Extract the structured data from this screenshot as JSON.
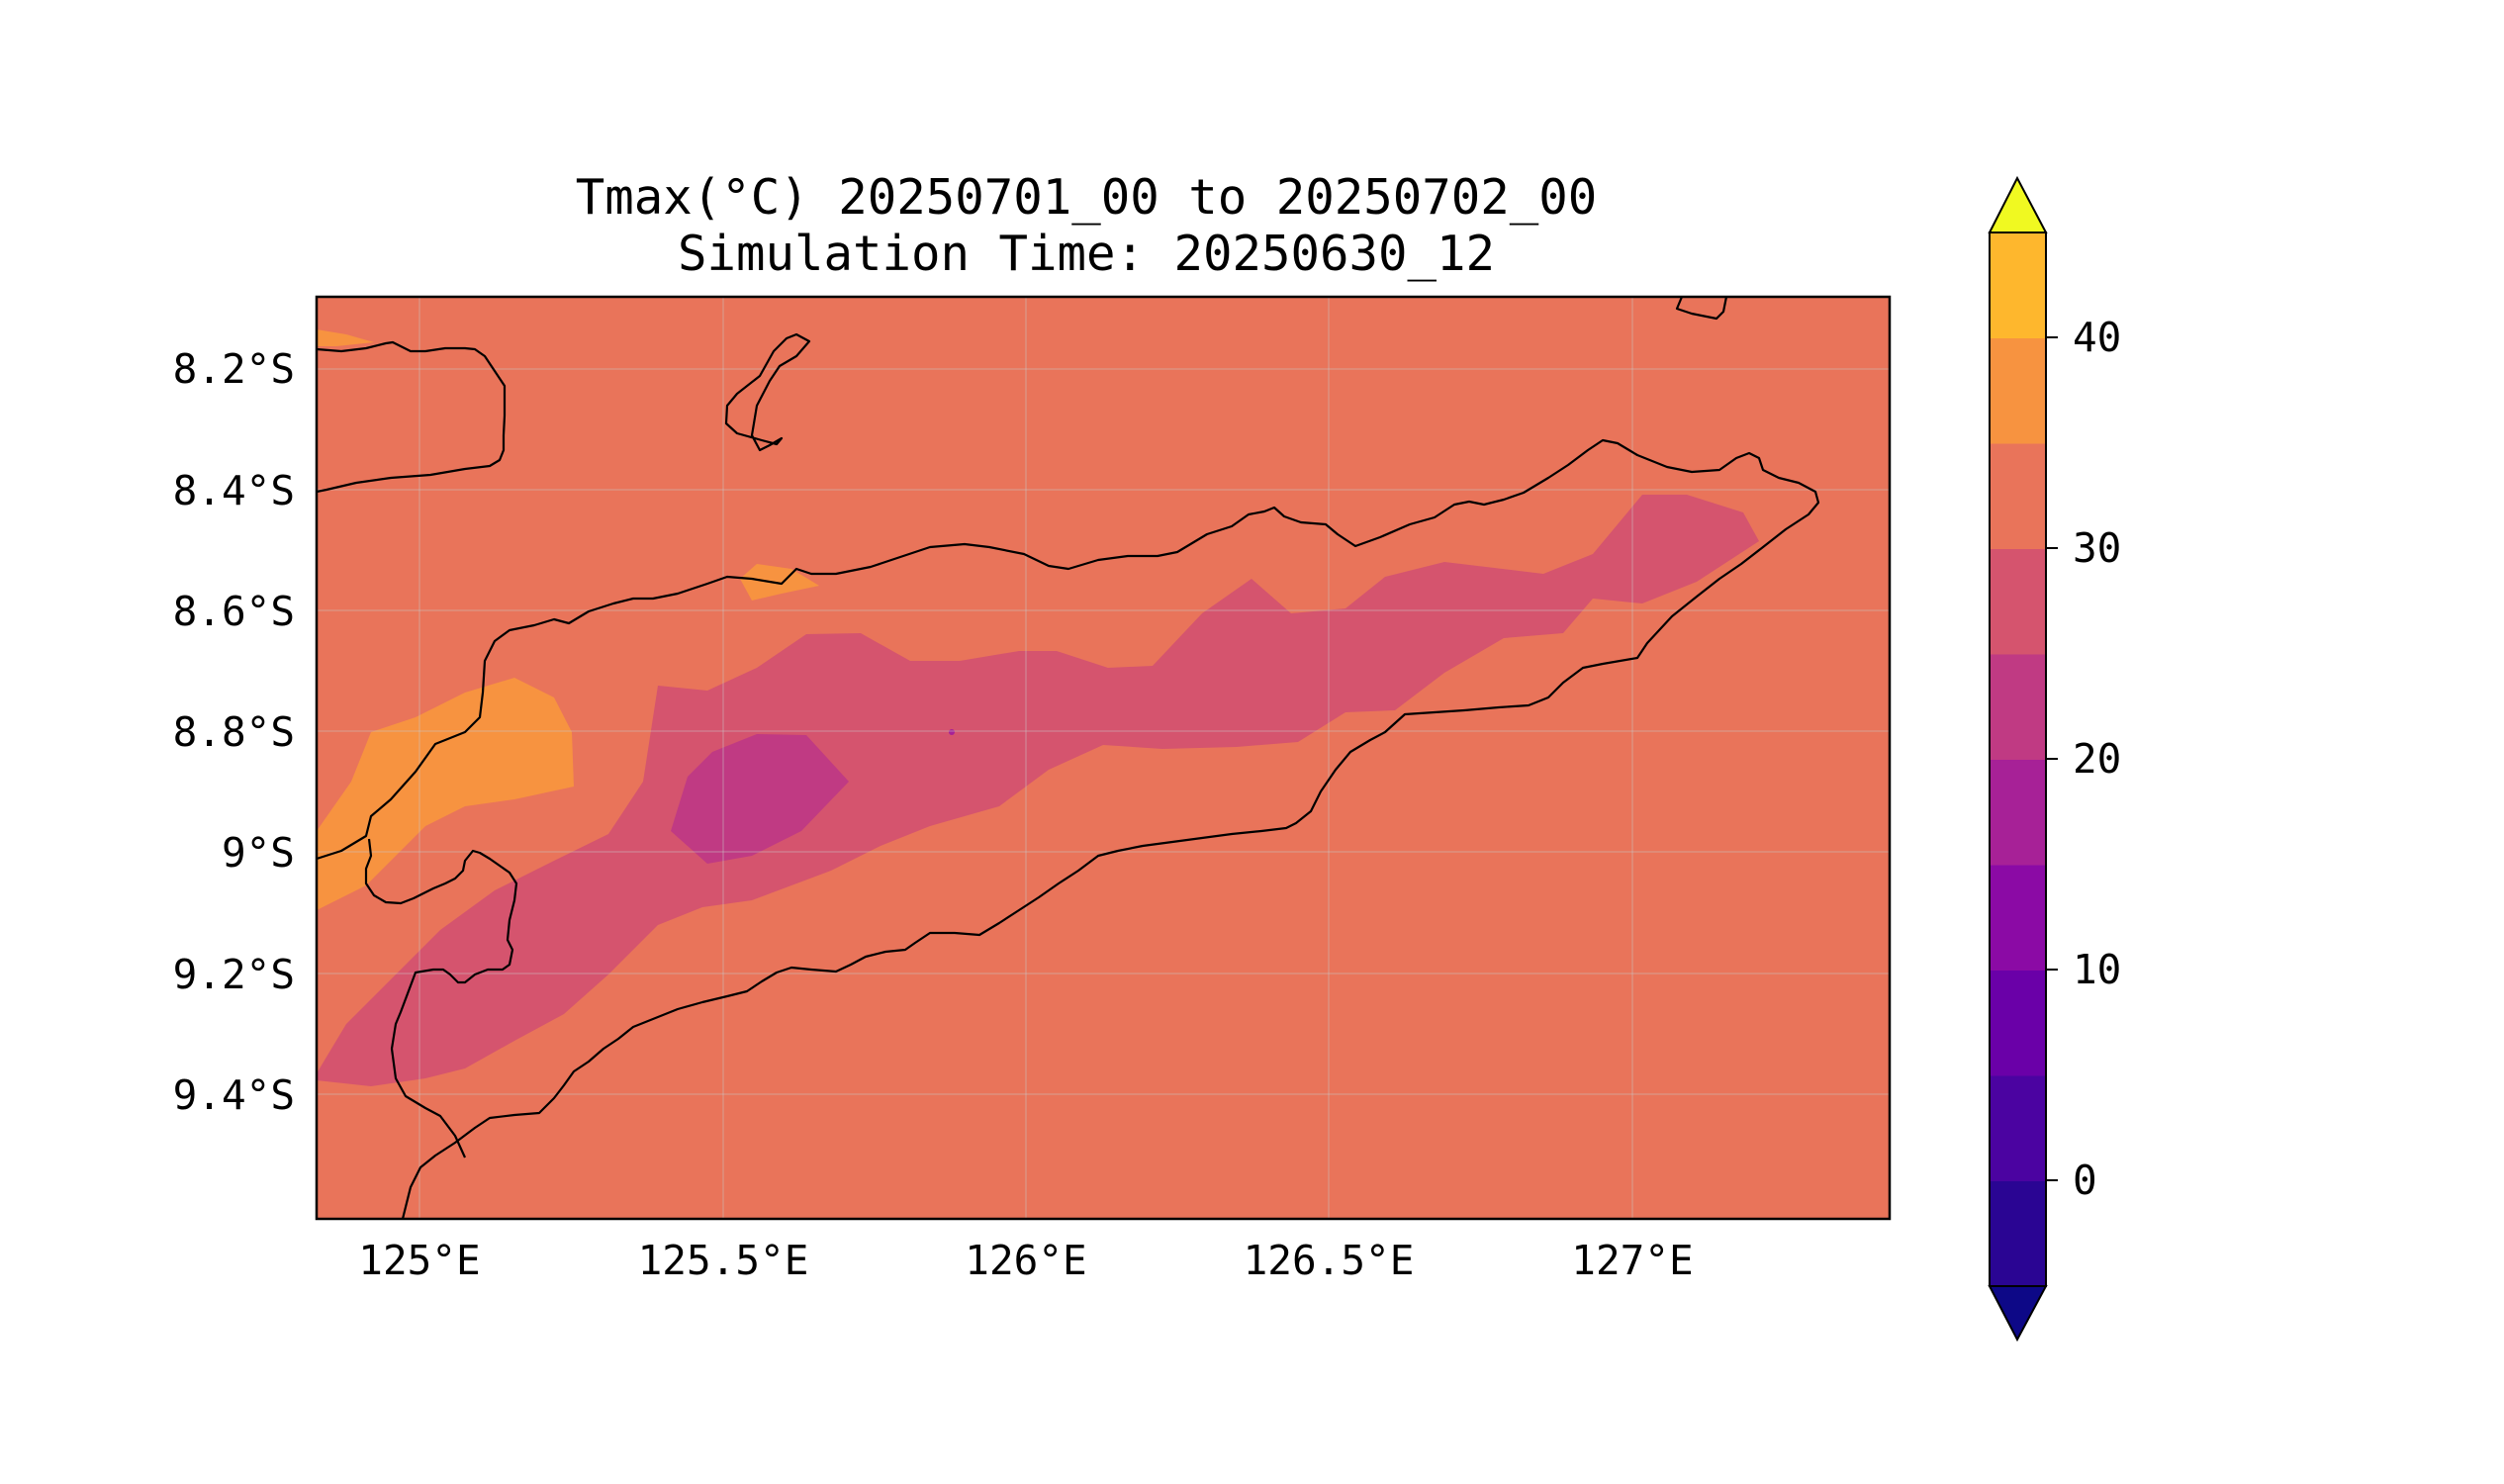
{
  "map": {
    "title_line1": "Tmax(°C) 20250701_00 to 20250702_00",
    "title_line2": "Simulation Time: 20250630_12",
    "lat_ticks": [
      "8.2°S",
      "8.4°S",
      "8.6°S",
      "8.8°S",
      "9°S",
      "9.2°S",
      "9.4°S"
    ],
    "lon_ticks": [
      "125°E",
      "125.5°E",
      "126°E",
      "126.5°E",
      "127°E"
    ],
    "background_field_color": "#e9745a",
    "coastline_color": "#000000"
  },
  "colorbar": {
    "tick_labels": [
      "0",
      "10",
      "20",
      "30",
      "40"
    ],
    "levels": [
      -5,
      0,
      5,
      10,
      15,
      20,
      25,
      30,
      35,
      40,
      45
    ],
    "colors": [
      "#0d0887",
      "#2a0593",
      "#4b03a1",
      "#6a00a8",
      "#8b0aa5",
      "#a72197",
      "#c03a83",
      "#d5546e",
      "#e9745a",
      "#f79340",
      "#feb72d",
      "#f0f921"
    ],
    "extend": "both"
  }
}
